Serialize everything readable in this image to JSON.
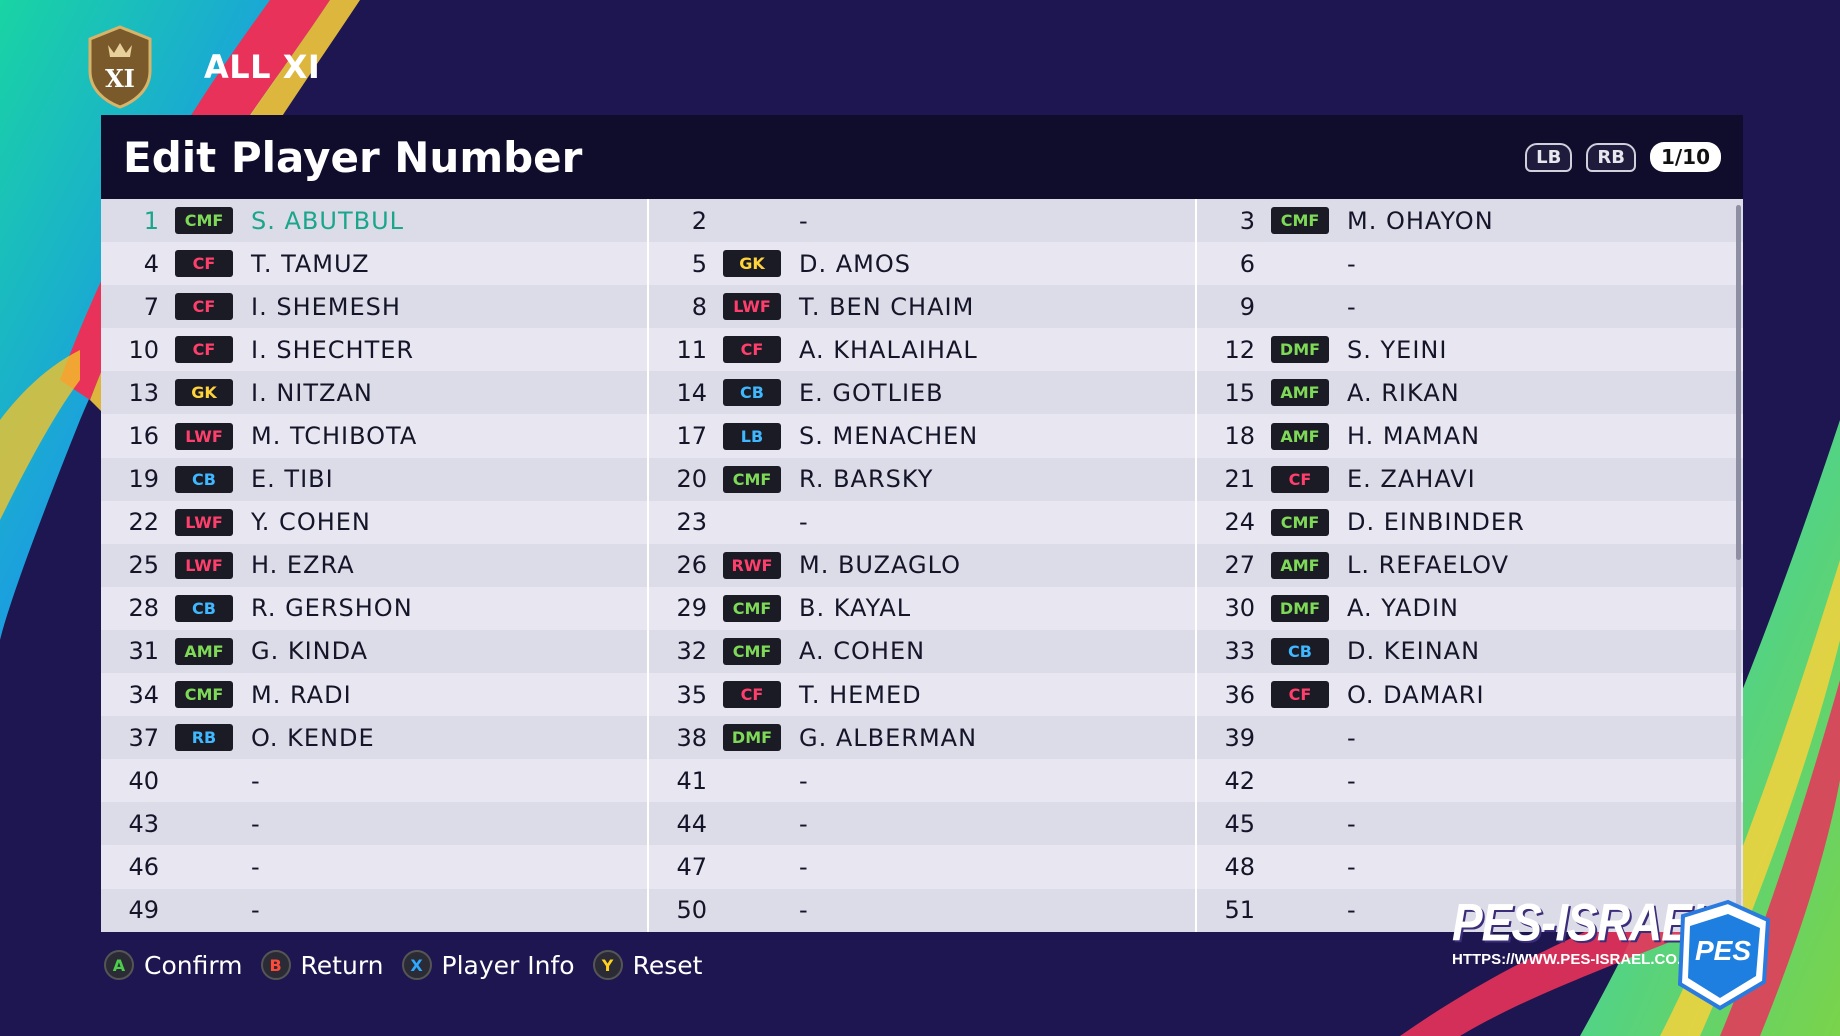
{
  "team": {
    "name": "ALL XI",
    "badge_text": "XI"
  },
  "screen": {
    "title": "Edit Player Number",
    "shoulder_left": "LB",
    "shoulder_right": "RB",
    "page": "1/10"
  },
  "colors": {
    "CMF": "#7ed957",
    "DMF": "#7ed957",
    "AMF": "#7ed957",
    "CF": "#ff3f6b",
    "LWF": "#ff3f6b",
    "RWF": "#ff3f6b",
    "CB": "#3fb8ff",
    "LB": "#3fb8ff",
    "RB": "#3fb8ff",
    "GK": "#ffd33a",
    "selected": "#1aa68d"
  },
  "selected_number": "1",
  "columns": [
    [
      {
        "num": "1",
        "pos": "CMF",
        "name": "S. ABUTBUL"
      },
      {
        "num": "4",
        "pos": "CF",
        "name": "T. TAMUZ"
      },
      {
        "num": "7",
        "pos": "CF",
        "name": "I. SHEMESH"
      },
      {
        "num": "10",
        "pos": "CF",
        "name": "I. SHECHTER"
      },
      {
        "num": "13",
        "pos": "GK",
        "name": "I. NITZAN"
      },
      {
        "num": "16",
        "pos": "LWF",
        "name": "M. TCHIBOTA"
      },
      {
        "num": "19",
        "pos": "CB",
        "name": "E. TIBI"
      },
      {
        "num": "22",
        "pos": "LWF",
        "name": "Y. COHEN"
      },
      {
        "num": "25",
        "pos": "LWF",
        "name": "H. EZRA"
      },
      {
        "num": "28",
        "pos": "CB",
        "name": "R. GERSHON"
      },
      {
        "num": "31",
        "pos": "AMF",
        "name": "G. KINDA"
      },
      {
        "num": "34",
        "pos": "CMF",
        "name": "M. RADI"
      },
      {
        "num": "37",
        "pos": "RB",
        "name": "O. KENDE"
      },
      {
        "num": "40",
        "pos": "",
        "name": "-"
      },
      {
        "num": "43",
        "pos": "",
        "name": "-"
      },
      {
        "num": "46",
        "pos": "",
        "name": "-"
      },
      {
        "num": "49",
        "pos": "",
        "name": "-"
      }
    ],
    [
      {
        "num": "2",
        "pos": "",
        "name": "-"
      },
      {
        "num": "5",
        "pos": "GK",
        "name": "D. AMOS"
      },
      {
        "num": "8",
        "pos": "LWF",
        "name": "T. BEN CHAIM"
      },
      {
        "num": "11",
        "pos": "CF",
        "name": "A. KHALAIHAL"
      },
      {
        "num": "14",
        "pos": "CB",
        "name": "E. GOTLIEB"
      },
      {
        "num": "17",
        "pos": "LB",
        "name": "S. MENACHEN"
      },
      {
        "num": "20",
        "pos": "CMF",
        "name": "R. BARSKY"
      },
      {
        "num": "23",
        "pos": "",
        "name": "-"
      },
      {
        "num": "26",
        "pos": "RWF",
        "name": "M. BUZAGLO"
      },
      {
        "num": "29",
        "pos": "CMF",
        "name": "B. KAYAL"
      },
      {
        "num": "32",
        "pos": "CMF",
        "name": "A. COHEN"
      },
      {
        "num": "35",
        "pos": "CF",
        "name": "T. HEMED"
      },
      {
        "num": "38",
        "pos": "DMF",
        "name": "G. ALBERMAN"
      },
      {
        "num": "41",
        "pos": "",
        "name": "-"
      },
      {
        "num": "44",
        "pos": "",
        "name": "-"
      },
      {
        "num": "47",
        "pos": "",
        "name": "-"
      },
      {
        "num": "50",
        "pos": "",
        "name": "-"
      }
    ],
    [
      {
        "num": "3",
        "pos": "CMF",
        "name": "M. OHAYON"
      },
      {
        "num": "6",
        "pos": "",
        "name": "-"
      },
      {
        "num": "9",
        "pos": "",
        "name": "-"
      },
      {
        "num": "12",
        "pos": "DMF",
        "name": "S. YEINI"
      },
      {
        "num": "15",
        "pos": "AMF",
        "name": "A. RIKAN"
      },
      {
        "num": "18",
        "pos": "AMF",
        "name": "H. MAMAN"
      },
      {
        "num": "21",
        "pos": "CF",
        "name": "E. ZAHAVI"
      },
      {
        "num": "24",
        "pos": "CMF",
        "name": "D. EINBINDER"
      },
      {
        "num": "27",
        "pos": "AMF",
        "name": "L. REFAELOV"
      },
      {
        "num": "30",
        "pos": "DMF",
        "name": "A. YADIN"
      },
      {
        "num": "33",
        "pos": "CB",
        "name": "D. KEINAN"
      },
      {
        "num": "36",
        "pos": "CF",
        "name": "O. DAMARI"
      },
      {
        "num": "39",
        "pos": "",
        "name": "-"
      },
      {
        "num": "42",
        "pos": "",
        "name": "-"
      },
      {
        "num": "45",
        "pos": "",
        "name": "-"
      },
      {
        "num": "48",
        "pos": "",
        "name": "-"
      },
      {
        "num": "51",
        "pos": "",
        "name": "-"
      }
    ]
  ],
  "footer": {
    "buttons": [
      {
        "key": "A",
        "label": "Confirm",
        "color": "#4ccd4c"
      },
      {
        "key": "B",
        "label": "Return",
        "color": "#ff4a3a"
      },
      {
        "key": "X",
        "label": "Player Info",
        "color": "#2fa8ff"
      },
      {
        "key": "Y",
        "label": "Reset",
        "color": "#ffd21f"
      }
    ]
  },
  "watermark": {
    "name": "PES-ISRAEL",
    "url": "HTTPS://WWW.PES-ISRAEL.CO.IL/",
    "badge_text": "PES"
  }
}
